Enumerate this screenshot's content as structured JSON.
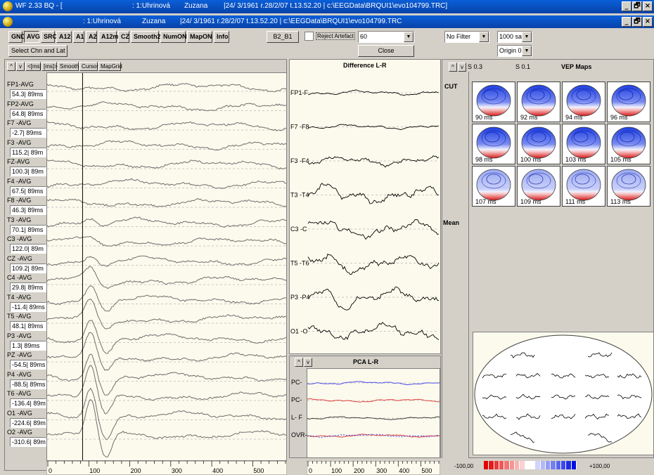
{
  "window": {
    "title_app": "WF 2.33 BQ - [",
    "title_patient_id": ": 1:Uhrinová",
    "title_name": "Zuzana",
    "title_info": "|24/ 3/1961 r.28/2/07 t.13.52.20 | c:\\EEGData\\BRQUI1\\evo104799.TRC]",
    "sub_patient_id": ": 1:Uhrinová",
    "sub_name": "Zuzana",
    "sub_info": "|24/ 3/1961 r.28/2/07 t.13.52.20 | c:\\EEGData\\BRQUI1\\evo104799.TRC",
    "min": "_",
    "max": "🗗",
    "close": "×"
  },
  "toolbar": {
    "refs": [
      "GND",
      "AVG",
      "SRC",
      "A12",
      "A1",
      "A2",
      "A12m",
      "CZ",
      "Smooth2",
      "NumON",
      "MapON",
      "Info"
    ],
    "b2b1": "B2_B1",
    "reject_label": "Reject Artefact",
    "reject_value": "60",
    "filter_value": "No Filter",
    "samples_value": "1000 sa",
    "origin_value": "Origin 0",
    "select_btn": "Select Chn and Lat",
    "close_btn": "Close"
  },
  "left_panel": {
    "controls": [
      "^",
      "v",
      "<[ms]",
      "[ms]>",
      "Smooth",
      "Cursor",
      "MapGrid"
    ],
    "cursor_ms": 89,
    "channels": [
      {
        "name": "FP1-AVG",
        "value": "54.3| 89ms"
      },
      {
        "name": "FP2-AVG",
        "value": "64.8| 89ms"
      },
      {
        "name": "F7 -AVG",
        "value": "-2.7| 89ms"
      },
      {
        "name": "F3 -AVG",
        "value": "115.2| 89m"
      },
      {
        "name": "FZ-AVG",
        "value": "100.3| 89m"
      },
      {
        "name": "F4 -AVG",
        "value": "67.5| 89ms"
      },
      {
        "name": "F8 -AVG",
        "value": "46.3| 89ms"
      },
      {
        "name": "T3 -AVG",
        "value": "70.1| 89ms"
      },
      {
        "name": "C3 -AVG",
        "value": "122.0| 89m"
      },
      {
        "name": "CZ -AVG",
        "value": "109.2| 89m"
      },
      {
        "name": "C4 -AVG",
        "value": "29.8| 89ms"
      },
      {
        "name": "T4 -AVG",
        "value": "-11.4| 89ms"
      },
      {
        "name": "T5 -AVG",
        "value": "48.1| 89ms"
      },
      {
        "name": "P3 -AVG",
        "value": "1.3| 89ms"
      },
      {
        "name": "PZ -AVG",
        "value": "-54.5| 89ms"
      },
      {
        "name": "P4 -AVG",
        "value": "-88.5| 89ms"
      },
      {
        "name": "T6 -AVG",
        "value": "-136.4| 89m"
      },
      {
        "name": "O1 -AVG",
        "value": "-224.6| 89m"
      },
      {
        "name": "O2 -AVG",
        "value": "-310.6| 89m"
      }
    ],
    "axis_ticks": [
      "0",
      "100",
      "200",
      "300",
      "400",
      "500"
    ]
  },
  "diff_panel": {
    "title": "Difference L-R",
    "channels": [
      "FP1-F",
      "F7 -F8",
      "F3 -F4",
      "T3 -T4",
      "C3 -C",
      "T5 -T6",
      "P3 -P4",
      "O1 -O"
    ],
    "axis_ticks": [
      "0",
      "100",
      "200",
      "300",
      "400",
      "500"
    ]
  },
  "pca_panel": {
    "title": "PCA L-R",
    "controls": [
      "^",
      "v"
    ],
    "rows": [
      "PC-",
      "PC-",
      "L- F",
      "OVR-"
    ]
  },
  "vep_panel": {
    "controls": [
      "^",
      "v"
    ],
    "s1": "S 0.3",
    "s2": "S 0.1",
    "title": "VEP Maps",
    "cut_label": "CUT",
    "mean_label": "Mean",
    "maps": [
      "90 ms",
      "92 ms",
      "94 ms",
      "96 ms",
      "98 ms",
      "100 ms",
      "103 ms",
      "105 ms",
      "107 ms",
      "109 ms",
      "111 ms",
      "113 ms"
    ],
    "scale_min": "-100,00",
    "scale_max": "+100,00"
  },
  "colors": {
    "title_blue": "#0842a8",
    "trace_gray": "#6e6e6e",
    "pca_blue": "#4a4ae8",
    "pca_red": "#e04040",
    "map_blue": "#1e3fe0",
    "map_red": "#d81818"
  }
}
